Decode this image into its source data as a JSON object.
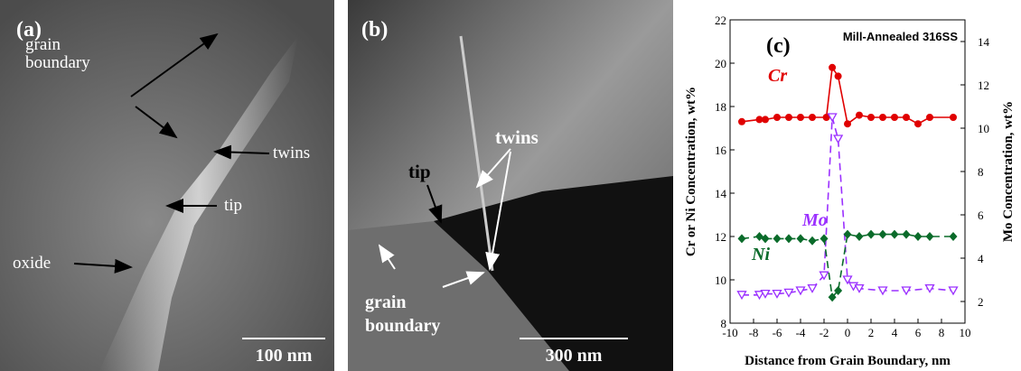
{
  "panels": [
    {
      "label": "(a)",
      "annotations": [
        "grain boundary",
        "twins",
        "tip",
        "oxide"
      ],
      "scale_bar": "100 nm"
    },
    {
      "label": "(b)",
      "annotations": [
        "twins",
        "tip",
        "grain boundary"
      ],
      "scale_bar": "300 nm"
    }
  ],
  "chart_data": {
    "type": "line",
    "label": "(c)",
    "title": "Mill-Annealed 316SS",
    "x_label": "Distance from Grain Boundary, nm",
    "y_label": "Cr or Ni Concentration, wt%",
    "y2_label": "Mo Concentration, wt%",
    "xlim": [
      -10,
      10
    ],
    "xticks": [
      -10,
      -8,
      -6,
      -4,
      -2,
      0,
      2,
      4,
      6,
      8,
      10
    ],
    "ylim": [
      8,
      22
    ],
    "yticks": [
      8,
      10,
      12,
      14,
      16,
      18,
      20,
      22
    ],
    "y2lim": [
      1,
      15
    ],
    "y2ticks": [
      2,
      4,
      6,
      8,
      10,
      12,
      14
    ],
    "series": [
      {
        "name": "Cr",
        "color": "#e00000",
        "marker": "circle",
        "line_style": "solid",
        "x": [
          -9,
          -7.5,
          -7,
          -6,
          -5,
          -4,
          -3,
          -1.8,
          -1.3,
          -0.8,
          0,
          1,
          2,
          3,
          4,
          5,
          6,
          7,
          9
        ],
        "values": [
          17.3,
          17.4,
          17.4,
          17.5,
          17.5,
          17.5,
          17.5,
          17.5,
          19.8,
          19.4,
          17.2,
          17.6,
          17.5,
          17.5,
          17.5,
          17.5,
          17.2,
          17.5,
          17.5
        ]
      },
      {
        "name": "Mo",
        "color": "#9b30ff",
        "marker": "triangle-down",
        "line_style": "dashed",
        "axis": "y2",
        "x": [
          -9,
          -7.5,
          -7,
          -6,
          -5,
          -4,
          -3,
          -2,
          -1.3,
          -0.8,
          0,
          0.5,
          1,
          3,
          5,
          7,
          9
        ],
        "values": [
          2.3,
          2.3,
          2.35,
          2.35,
          2.4,
          2.5,
          2.6,
          3.2,
          10.5,
          9.5,
          3.0,
          2.7,
          2.6,
          2.5,
          2.5,
          2.6,
          2.5
        ]
      },
      {
        "name": "Ni",
        "color": "#0a6b2a",
        "marker": "diamond",
        "line_style": "dashed",
        "x": [
          -9,
          -7.5,
          -7,
          -6,
          -5,
          -4,
          -3,
          -2,
          -1.3,
          -0.8,
          0,
          1,
          2,
          3,
          4,
          5,
          6,
          7,
          9
        ],
        "values": [
          11.9,
          12.0,
          11.9,
          11.9,
          11.9,
          11.9,
          11.8,
          11.9,
          9.2,
          9.5,
          12.1,
          12.0,
          12.1,
          12.1,
          12.1,
          12.1,
          12.0,
          12.0,
          12.0
        ]
      }
    ]
  }
}
